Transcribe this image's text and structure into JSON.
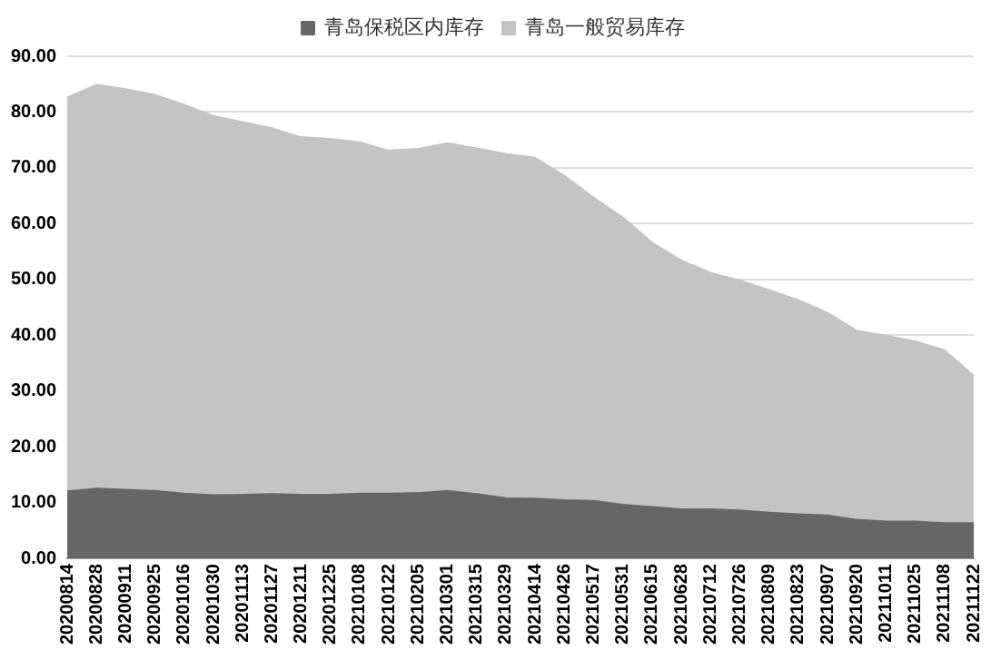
{
  "chart_data": {
    "type": "area",
    "stacked": true,
    "categories": [
      "20200814",
      "20200828",
      "20200911",
      "20200925",
      "20201016",
      "20201030",
      "20201113",
      "20201127",
      "20201211",
      "20201225",
      "20210108",
      "20210122",
      "20210205",
      "20210301",
      "20210315",
      "20210329",
      "20210414",
      "20210426",
      "20210517",
      "20210531",
      "20210615",
      "20210628",
      "20210712",
      "20210726",
      "20210809",
      "20210823",
      "20210907",
      "20210920",
      "20211011",
      "20211025",
      "20211108",
      "20211122"
    ],
    "series": [
      {
        "name": "青岛保税区内库存",
        "color": "#666666",
        "values": [
          12.0,
          12.5,
          12.3,
          12.1,
          11.6,
          11.3,
          11.4,
          11.5,
          11.4,
          11.4,
          11.6,
          11.6,
          11.7,
          12.1,
          11.5,
          10.8,
          10.7,
          10.4,
          10.3,
          9.6,
          9.2,
          8.8,
          8.8,
          8.6,
          8.2,
          7.9,
          7.7,
          6.9,
          6.6,
          6.6,
          6.3,
          6.3
        ]
      },
      {
        "name": "青岛一般贸易库存",
        "color": "#c4c4c4",
        "values": [
          70.6,
          72.4,
          71.8,
          71.0,
          69.7,
          68.0,
          66.8,
          65.6,
          64.1,
          63.8,
          63.0,
          61.5,
          61.7,
          62.3,
          62.0,
          61.7,
          61.1,
          58.2,
          54.4,
          51.5,
          47.4,
          44.6,
          42.4,
          41.2,
          39.9,
          38.4,
          36.3,
          33.9,
          33.3,
          32.3,
          31.0,
          26.4
        ]
      }
    ],
    "ylim": [
      0,
      90
    ],
    "yticks": [
      {
        "value": 0,
        "label": "0.00"
      },
      {
        "value": 10,
        "label": "10.00"
      },
      {
        "value": 20,
        "label": "20.00"
      },
      {
        "value": 30,
        "label": "30.00"
      },
      {
        "value": 40,
        "label": "40.00"
      },
      {
        "value": 50,
        "label": "50.00"
      },
      {
        "value": 60,
        "label": "60.00"
      },
      {
        "value": 70,
        "label": "70.00"
      },
      {
        "value": 80,
        "label": "80.00"
      },
      {
        "value": 90,
        "label": "90.00"
      }
    ],
    "grid": "y",
    "legend": "top"
  }
}
